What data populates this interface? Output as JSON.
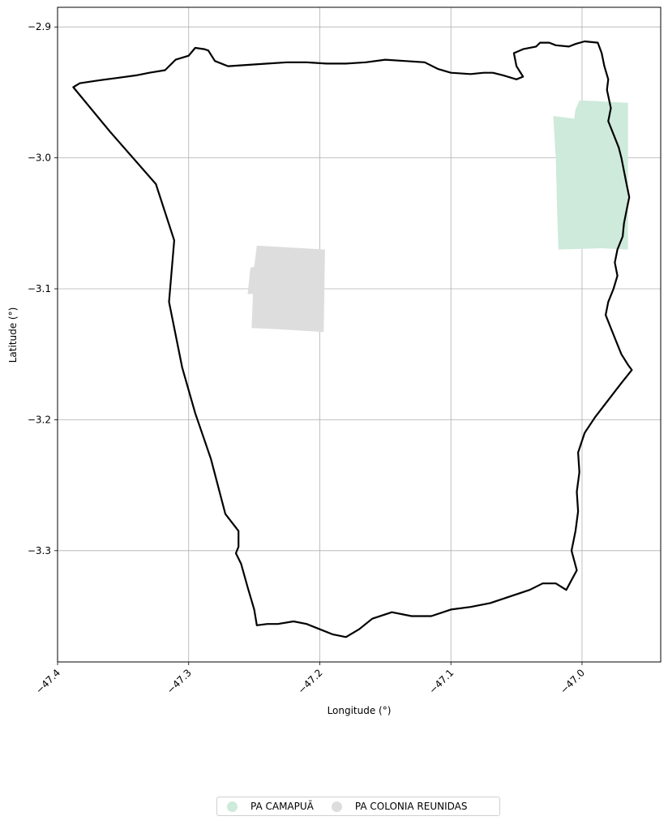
{
  "chart_data": {
    "type": "map",
    "xlabel": "Longitude (°)",
    "ylabel": "Latitude (°)",
    "xlim": [
      -47.4,
      -46.94
    ],
    "ylim": [
      -3.385,
      -2.885
    ],
    "x_ticks": [
      -47.4,
      -47.3,
      -47.2,
      -47.1,
      -47.0
    ],
    "x_tick_labels": [
      "−47.4",
      "−47.3",
      "−47.2",
      "−47.1",
      "−47.0"
    ],
    "y_ticks": [
      -2.9,
      -3.0,
      -3.1,
      -3.2,
      -3.3
    ],
    "y_tick_labels": [
      "−2.9",
      "−3.0",
      "−3.1",
      "−3.2",
      "−3.3"
    ],
    "grid": true,
    "legend_placement": "bottom-center",
    "boundary": {
      "color": "#000000",
      "coords": [
        [
          -47.388,
          -2.946
        ],
        [
          -47.383,
          -2.943
        ],
        [
          -47.37,
          -2.941
        ],
        [
          -47.355,
          -2.939
        ],
        [
          -47.34,
          -2.937
        ],
        [
          -47.33,
          -2.935
        ],
        [
          -47.318,
          -2.933
        ],
        [
          -47.31,
          -2.925
        ],
        [
          -47.3,
          -2.922
        ],
        [
          -47.295,
          -2.916
        ],
        [
          -47.288,
          -2.917
        ],
        [
          -47.285,
          -2.918
        ],
        [
          -47.28,
          -2.926
        ],
        [
          -47.27,
          -2.93
        ],
        [
          -47.255,
          -2.929
        ],
        [
          -47.24,
          -2.928
        ],
        [
          -47.225,
          -2.927
        ],
        [
          -47.21,
          -2.927
        ],
        [
          -47.195,
          -2.928
        ],
        [
          -47.18,
          -2.928
        ],
        [
          -47.165,
          -2.927
        ],
        [
          -47.15,
          -2.925
        ],
        [
          -47.135,
          -2.926
        ],
        [
          -47.12,
          -2.927
        ],
        [
          -47.11,
          -2.932
        ],
        [
          -47.1,
          -2.935
        ],
        [
          -47.085,
          -2.936
        ],
        [
          -47.075,
          -2.935
        ],
        [
          -47.068,
          -2.935
        ],
        [
          -47.06,
          -2.937
        ],
        [
          -47.05,
          -2.94
        ],
        [
          -47.045,
          -2.938
        ],
        [
          -47.05,
          -2.93
        ],
        [
          -47.052,
          -2.92
        ],
        [
          -47.045,
          -2.917
        ],
        [
          -47.035,
          -2.915
        ],
        [
          -47.032,
          -2.912
        ],
        [
          -47.025,
          -2.912
        ],
        [
          -47.02,
          -2.914
        ],
        [
          -47.01,
          -2.915
        ],
        [
          -47.005,
          -2.913
        ],
        [
          -46.998,
          -2.911
        ],
        [
          -46.988,
          -2.912
        ],
        [
          -46.985,
          -2.92
        ],
        [
          -46.983,
          -2.93
        ],
        [
          -46.98,
          -2.94
        ],
        [
          -46.981,
          -2.948
        ],
        [
          -46.978,
          -2.962
        ],
        [
          -46.98,
          -2.972
        ],
        [
          -46.976,
          -2.982
        ],
        [
          -46.972,
          -2.992
        ],
        [
          -46.97,
          -3.0
        ],
        [
          -46.968,
          -3.01
        ],
        [
          -46.966,
          -3.02
        ],
        [
          -46.964,
          -3.03
        ],
        [
          -46.966,
          -3.04
        ],
        [
          -46.968,
          -3.05
        ],
        [
          -46.969,
          -3.06
        ],
        [
          -46.973,
          -3.07
        ],
        [
          -46.975,
          -3.08
        ],
        [
          -46.973,
          -3.09
        ],
        [
          -46.976,
          -3.1
        ],
        [
          -46.98,
          -3.11
        ],
        [
          -46.982,
          -3.12
        ],
        [
          -46.978,
          -3.13
        ],
        [
          -46.974,
          -3.14
        ],
        [
          -46.97,
          -3.15
        ],
        [
          -46.965,
          -3.158
        ],
        [
          -46.962,
          -3.162
        ],
        [
          -46.97,
          -3.172
        ],
        [
          -46.98,
          -3.185
        ],
        [
          -46.99,
          -3.198
        ],
        [
          -46.998,
          -3.21
        ],
        [
          -47.003,
          -3.225
        ],
        [
          -47.002,
          -3.24
        ],
        [
          -47.004,
          -3.255
        ],
        [
          -47.003,
          -3.27
        ],
        [
          -47.005,
          -3.285
        ],
        [
          -47.008,
          -3.3
        ],
        [
          -47.004,
          -3.315
        ],
        [
          -47.012,
          -3.33
        ],
        [
          -47.02,
          -3.325
        ],
        [
          -47.03,
          -3.325
        ],
        [
          -47.04,
          -3.33
        ],
        [
          -47.055,
          -3.335
        ],
        [
          -47.07,
          -3.34
        ],
        [
          -47.085,
          -3.343
        ],
        [
          -47.1,
          -3.345
        ],
        [
          -47.115,
          -3.35
        ],
        [
          -47.13,
          -3.35
        ],
        [
          -47.145,
          -3.347
        ],
        [
          -47.16,
          -3.352
        ],
        [
          -47.17,
          -3.36
        ],
        [
          -47.18,
          -3.366
        ],
        [
          -47.19,
          -3.364
        ],
        [
          -47.2,
          -3.36
        ],
        [
          -47.21,
          -3.356
        ],
        [
          -47.22,
          -3.354
        ],
        [
          -47.232,
          -3.356
        ],
        [
          -47.24,
          -3.356
        ],
        [
          -47.248,
          -3.357
        ],
        [
          -47.25,
          -3.345
        ],
        [
          -47.255,
          -3.328
        ],
        [
          -47.26,
          -3.31
        ],
        [
          -47.264,
          -3.302
        ],
        [
          -47.262,
          -3.297
        ],
        [
          -47.262,
          -3.285
        ],
        [
          -47.272,
          -3.272
        ],
        [
          -47.283,
          -3.23
        ],
        [
          -47.295,
          -3.195
        ],
        [
          -47.305,
          -3.16
        ],
        [
          -47.315,
          -3.11
        ],
        [
          -47.311,
          -3.063
        ],
        [
          -47.325,
          -3.02
        ],
        [
          -47.36,
          -2.98
        ],
        [
          -47.388,
          -2.946
        ]
      ]
    },
    "series": [
      {
        "name": "PA CAMAPUÃ",
        "color": "#cdeadb",
        "coords": [
          [
            -47.022,
            -2.968
          ],
          [
            -47.006,
            -2.97
          ],
          [
            -47.005,
            -2.963
          ],
          [
            -47.002,
            -2.956
          ],
          [
            -46.965,
            -2.958
          ],
          [
            -46.965,
            -3.07
          ],
          [
            -46.985,
            -3.069
          ],
          [
            -47.018,
            -3.07
          ],
          [
            -47.019,
            -3.04
          ],
          [
            -47.02,
            -3.0
          ]
        ]
      },
      {
        "name": "PA COLONIA REUNIDAS",
        "color": "#dddddd",
        "coords": [
          [
            -47.248,
            -3.067
          ],
          [
            -47.196,
            -3.07
          ],
          [
            -47.197,
            -3.133
          ],
          [
            -47.23,
            -3.131
          ],
          [
            -47.252,
            -3.13
          ],
          [
            -47.251,
            -3.104
          ],
          [
            -47.255,
            -3.104
          ],
          [
            -47.253,
            -3.084
          ],
          [
            -47.25,
            -3.083
          ]
        ]
      }
    ]
  }
}
